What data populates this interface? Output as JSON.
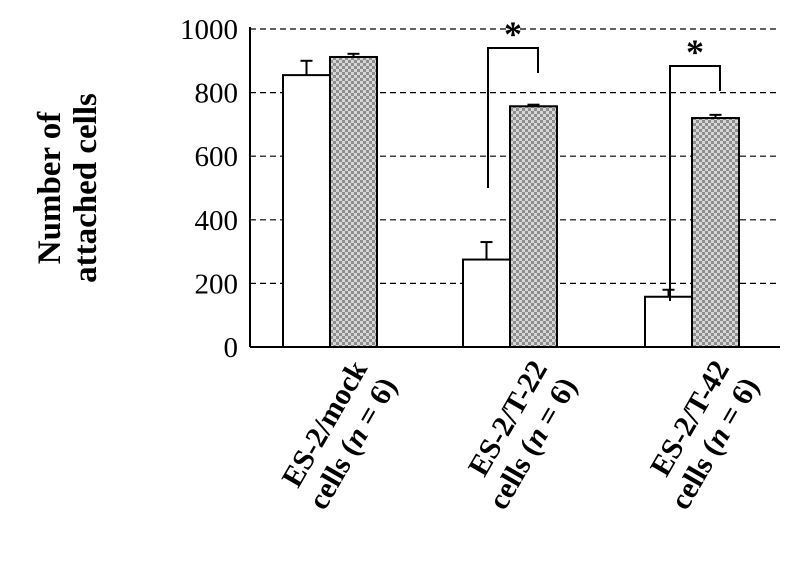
{
  "chart_data": {
    "type": "bar",
    "title": "",
    "ylabel_lines": [
      "Number of",
      "attached cells"
    ],
    "ylim": [
      0,
      1000
    ],
    "yticks": [
      0,
      200,
      400,
      600,
      800,
      1000
    ],
    "grid": "horizontal-dashed",
    "categories": [
      {
        "line1": "ES-2/mock",
        "line2_pre": "cells (",
        "line2_n": "n",
        "line2_post": " = 6)"
      },
      {
        "line1": "ES-2/T-22",
        "line2_pre": "cells (",
        "line2_n": "n",
        "line2_post": " = 6)"
      },
      {
        "line1": "ES-2/T-42",
        "line2_pre": "cells (",
        "line2_n": "n",
        "line2_post": " = 6)"
      }
    ],
    "series": [
      {
        "values": [
          855,
          275,
          158
        ],
        "errors": [
          45,
          55,
          22
        ],
        "color": "#ffffff",
        "pattern": "none"
      },
      {
        "values": [
          912,
          757,
          720
        ],
        "errors": [
          10,
          5,
          10
        ],
        "color": "#b8b8b8",
        "pattern": "checkered"
      }
    ],
    "significance": [
      {
        "category_index": 1,
        "label": "*"
      },
      {
        "category_index": 2,
        "label": "*"
      }
    ]
  }
}
